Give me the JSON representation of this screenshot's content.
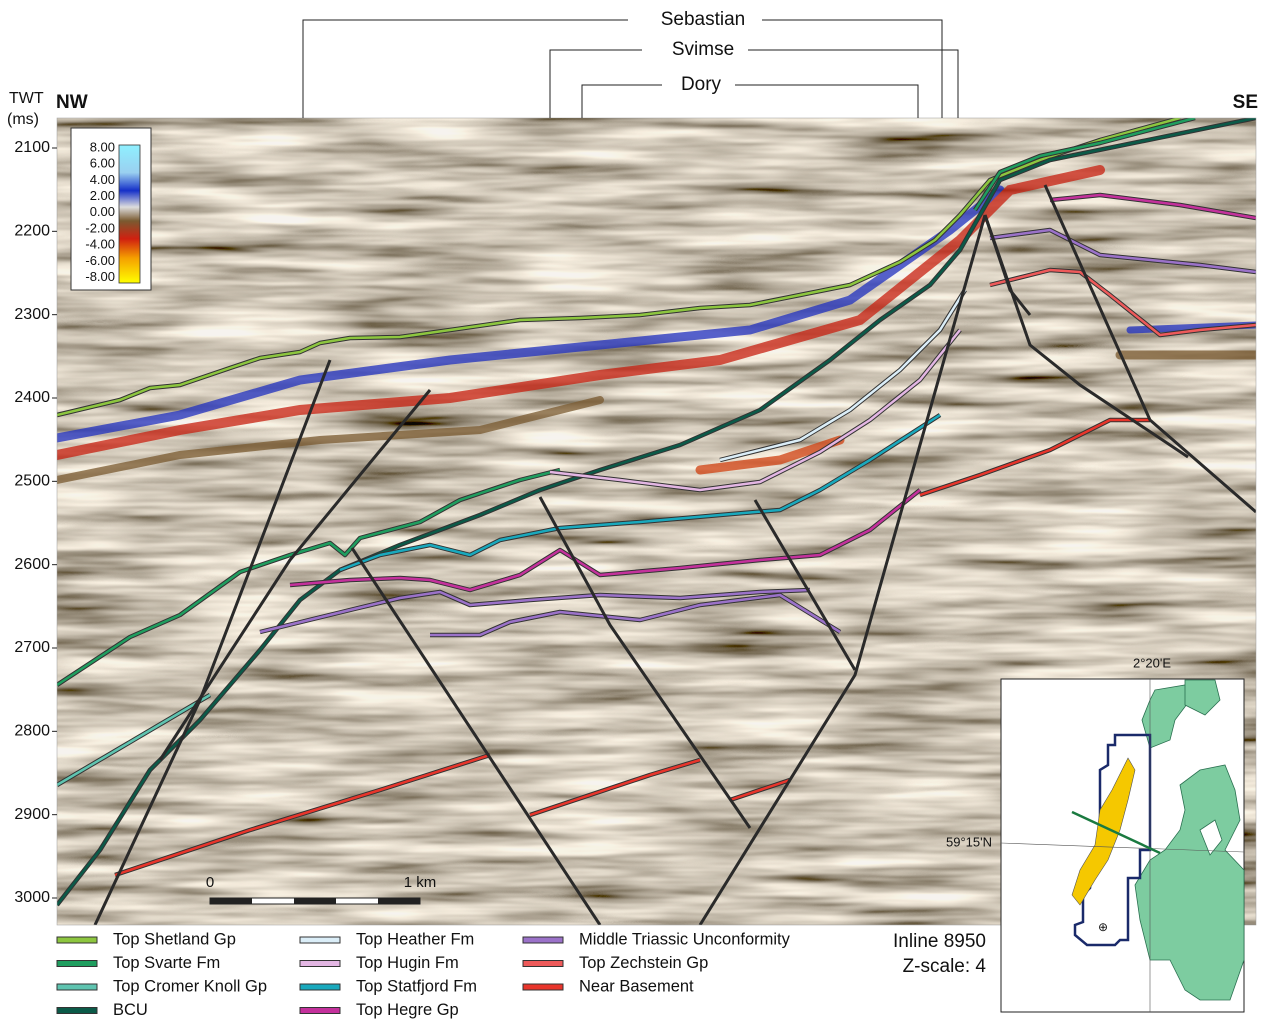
{
  "wells": [
    "Sebastian",
    "Svimse",
    "Dory"
  ],
  "axis": {
    "label_line1": "TWT",
    "label_line2": "(ms)",
    "ticks": [
      2100,
      2200,
      2300,
      2400,
      2500,
      2600,
      2700,
      2800,
      2900,
      3000
    ]
  },
  "direction": {
    "left": "NW",
    "right": "SE"
  },
  "colorbar": {
    "ticks": [
      "8.00",
      "6.00",
      "4.00",
      "2.00",
      "0.00",
      "-2.00",
      "-4.00",
      "-6.00",
      "-8.00"
    ]
  },
  "scale_bar": {
    "start": "0",
    "end": "1 km"
  },
  "legend": [
    {
      "label": "Top Shetland Gp",
      "color": "#8dc63f"
    },
    {
      "label": "Top Svarte Fm",
      "color": "#1f9e5f"
    },
    {
      "label": "Top Cromer Knoll Gp",
      "color": "#5fc4b0"
    },
    {
      "label": "BCU",
      "color": "#0b5a48"
    },
    {
      "label": "Top Heather Fm",
      "color": "#dbeef8"
    },
    {
      "label": "Top Hugin Fm",
      "color": "#e3b6e3"
    },
    {
      "label": "Top Statfjord Fm",
      "color": "#19a9bd"
    },
    {
      "label": "Top Hegre Gp",
      "color": "#c4319c"
    },
    {
      "label": "Middle Triassic Unconformity",
      "color": "#9b72c9"
    },
    {
      "label": "Top Zechstein Gp",
      "color": "#ee5a5a"
    },
    {
      "label": "Near Basement",
      "color": "#e8352b"
    }
  ],
  "info": {
    "inline": "Inline 8950",
    "zscale": "Z-scale: 4"
  },
  "map": {
    "lon_label": "2°20'E",
    "lat_label": "59°15'N"
  }
}
